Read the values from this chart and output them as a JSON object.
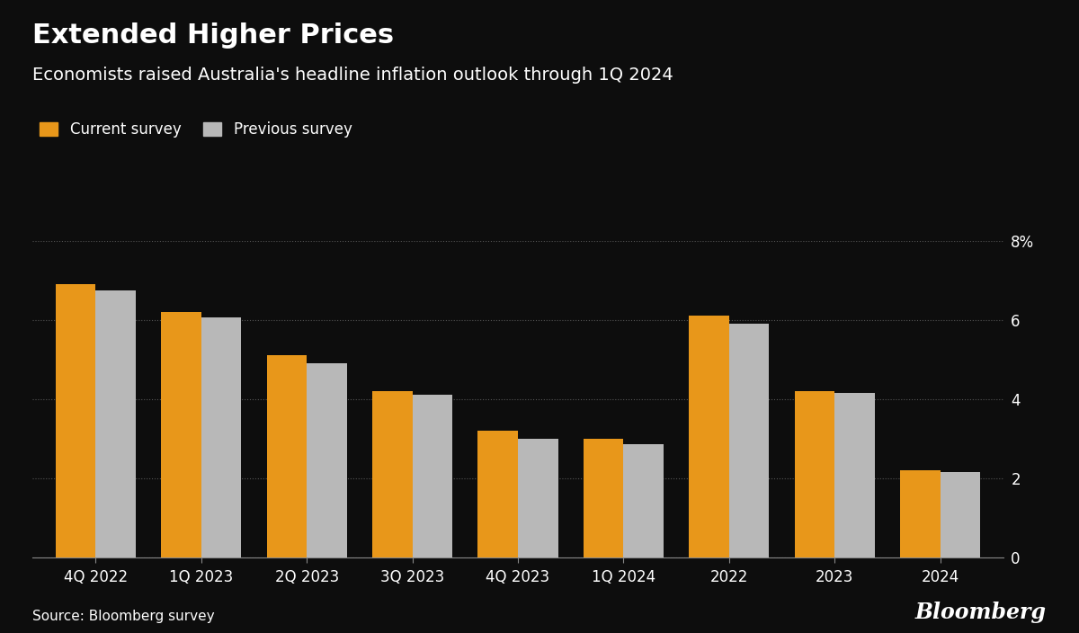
{
  "title": "Extended Higher Prices",
  "subtitle": "Economists raised Australia's headline inflation outlook through 1Q 2024",
  "source": "Source: Bloomberg survey",
  "bloomberg_label": "Bloomberg",
  "legend_labels": [
    "Current survey",
    "Previous survey"
  ],
  "categories": [
    "4Q 2022",
    "1Q 2023",
    "2Q 2023",
    "3Q 2023",
    "4Q 2023",
    "1Q 2024",
    "2022",
    "2023",
    "2024"
  ],
  "current_survey": [
    6.9,
    6.2,
    5.1,
    4.2,
    3.2,
    3.0,
    6.1,
    4.2,
    2.2
  ],
  "previous_survey": [
    6.75,
    6.05,
    4.9,
    4.1,
    3.0,
    2.85,
    5.9,
    4.15,
    2.15
  ],
  "bar_color_current": "#E8971A",
  "bar_color_previous": "#B8B8B8",
  "background_color": "#0d0d0d",
  "text_color": "#FFFFFF",
  "grid_color": "#555555",
  "ylim": [
    0,
    8
  ],
  "yticks": [
    0,
    2,
    4,
    6,
    8
  ],
  "ylabel_suffix": "%",
  "bar_width": 0.38,
  "title_fontsize": 22,
  "subtitle_fontsize": 14,
  "source_fontsize": 11,
  "tick_fontsize": 12,
  "legend_fontsize": 12
}
